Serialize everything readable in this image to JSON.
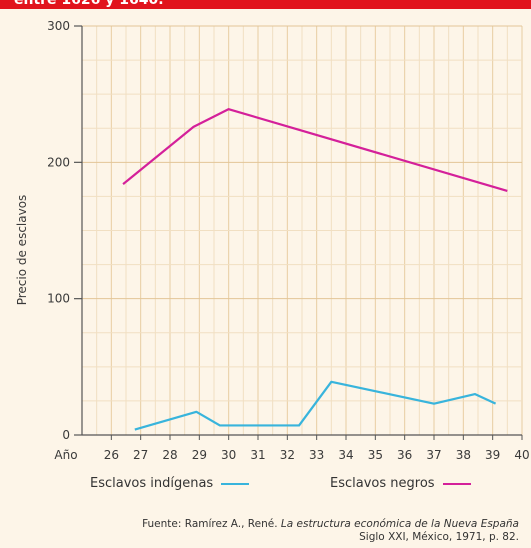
{
  "header": {
    "title": "entre 1626 y 1640."
  },
  "chart_data": {
    "type": "line",
    "ylabel": "Precio de esclavos",
    "xlabel": "Año",
    "xlim": [
      25,
      40
    ],
    "ylim": [
      0,
      300
    ],
    "x_ticks": [
      "26",
      "27",
      "28",
      "29",
      "30",
      "31",
      "32",
      "33",
      "34",
      "35",
      "36",
      "37",
      "38",
      "39",
      "40"
    ],
    "y_ticks": [
      "0",
      "100",
      "200",
      "300"
    ],
    "grid": true,
    "legend_position": "bottom",
    "series": [
      {
        "name": "Esclavos indígenas",
        "color": "#38b4dc",
        "x": [
          26.8,
          28.9,
          29.7,
          32.4,
          33.5,
          37.0,
          38.4,
          39.1
        ],
        "y": [
          4,
          17,
          7,
          7,
          39,
          23,
          30,
          23
        ]
      },
      {
        "name": "Esclavos negros",
        "color": "#d4209a",
        "x": [
          26.4,
          28.8,
          30.0,
          39.5
        ],
        "y": [
          184,
          226,
          239,
          179
        ]
      }
    ]
  },
  "source": {
    "prefix": "Fuente: Ramírez A., René.",
    "title": "La estructura económica de la Nueva España",
    "line2": "Siglo XXI, México, 1971, p. 82."
  }
}
